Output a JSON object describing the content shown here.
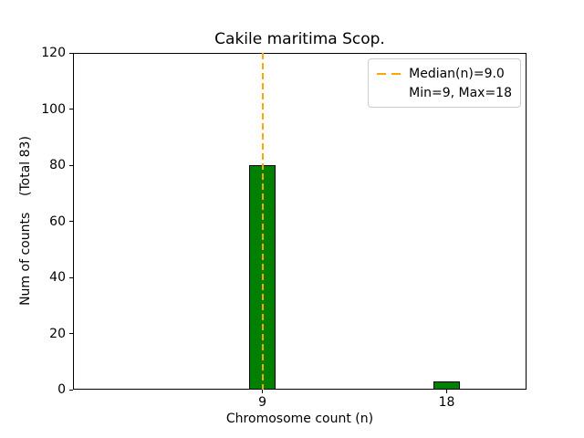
{
  "chart_data": {
    "type": "bar",
    "title": "Cakile maritima Scop.",
    "xlabel": "Chromosome count (n)",
    "ylabel": "Num of counts    (Total 83)",
    "total_counts": 83,
    "categories": [
      9,
      18
    ],
    "values": [
      80,
      3
    ],
    "bar_color": "#008000",
    "bar_edge_color": "#000000",
    "bar_width": 1.3,
    "xlim": [
      -0.25,
      21.9
    ],
    "ylim": [
      0,
      120
    ],
    "yticks": [
      0,
      20,
      40,
      60,
      80,
      100,
      120
    ],
    "xticks": [
      9,
      18
    ],
    "grid": false,
    "median_line": {
      "x": 9,
      "color": "#FFA500",
      "linestyle": "dashed",
      "linewidth": 2
    },
    "legend": {
      "position": "upper right",
      "entries": [
        {
          "label": "Median(n)=9.0",
          "handle": "dashed-line",
          "color": "#FFA500"
        },
        {
          "label": "Min=9, Max=18",
          "handle": "none"
        }
      ]
    }
  }
}
